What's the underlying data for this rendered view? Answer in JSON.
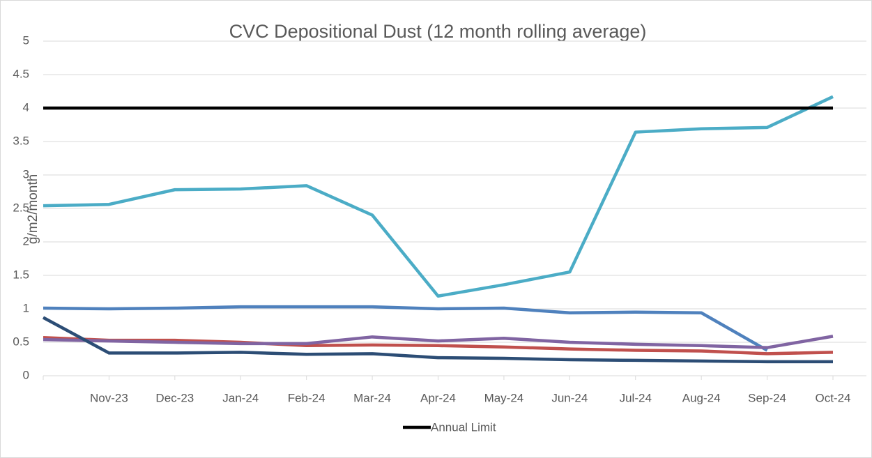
{
  "chart_data": {
    "type": "line",
    "title": "CVC Depositional Dust (12 month rolling average)",
    "y_label": "g/m2/month",
    "categories": [
      null,
      "Nov-23",
      "Dec-23",
      "Jan-24",
      "Feb-24",
      "Mar-24",
      "Apr-24",
      "May-24",
      "Jun-24",
      "Jul-24",
      "Aug-24",
      "Sep-24",
      "Oct-24"
    ],
    "ylim": [
      0,
      5
    ],
    "yticks": [
      0,
      0.5,
      1,
      1.5,
      2,
      2.5,
      3,
      3.5,
      4,
      4.5,
      5
    ],
    "grid": true,
    "legend": "bottom",
    "series": [
      {
        "color": "#4bacc6",
        "values": [
          2.54,
          2.56,
          2.78,
          2.79,
          2.84,
          2.4,
          1.19,
          1.36,
          1.55,
          3.64,
          3.69,
          3.71,
          4.17
        ]
      },
      {
        "color": "#4f81bd",
        "values": [
          1.01,
          1.0,
          1.01,
          1.03,
          1.03,
          1.03,
          1.0,
          1.01,
          0.94,
          0.95,
          0.94,
          0.38,
          null
        ]
      },
      {
        "color": "#c0504d",
        "values": [
          0.57,
          0.53,
          0.53,
          0.5,
          0.45,
          0.46,
          0.45,
          0.43,
          0.4,
          0.38,
          0.37,
          0.33,
          0.35
        ]
      },
      {
        "color": "#8064a2",
        "values": [
          0.54,
          0.52,
          0.5,
          0.48,
          0.48,
          0.58,
          0.52,
          0.56,
          0.5,
          0.47,
          0.45,
          0.42,
          0.59
        ]
      },
      {
        "color": "#2c4d75",
        "values": [
          0.87,
          0.34,
          0.34,
          0.35,
          0.32,
          0.33,
          0.27,
          0.26,
          0.24,
          0.23,
          0.22,
          0.21,
          0.21
        ]
      },
      {
        "name": "Annual Limit",
        "color": "#000000",
        "values": [
          4,
          4,
          4,
          4,
          4,
          4,
          4,
          4,
          4,
          4,
          4,
          4,
          4
        ]
      }
    ]
  }
}
